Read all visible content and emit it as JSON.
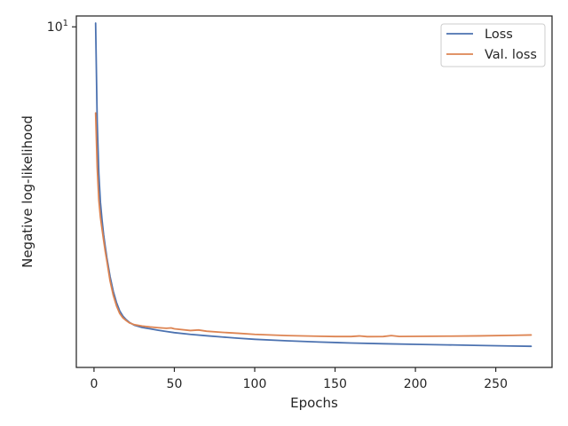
{
  "chart_data": {
    "type": "line",
    "title": "",
    "xlabel": "Epochs",
    "ylabel": "Negative log-likelihood",
    "xlim": [
      -11,
      285
    ],
    "ylim": [
      1.61,
      10.6
    ],
    "yscale": "log",
    "x_ticks": [
      0,
      50,
      100,
      150,
      200,
      250
    ],
    "y_ticks": [
      {
        "value": 10,
        "label_base": "10",
        "label_exp": "1"
      }
    ],
    "grid": false,
    "legend": {
      "position": "top-right",
      "entries": [
        "Loss",
        "Val. loss"
      ]
    },
    "series": [
      {
        "name": "Loss",
        "color": "#4c72b0",
        "points": [
          [
            1,
            10.2
          ],
          [
            2,
            6.0
          ],
          [
            3,
            4.55
          ],
          [
            4,
            3.9
          ],
          [
            5,
            3.55
          ],
          [
            6,
            3.28
          ],
          [
            7,
            3.08
          ],
          [
            8,
            2.9
          ],
          [
            10,
            2.62
          ],
          [
            12,
            2.42
          ],
          [
            14,
            2.28
          ],
          [
            16,
            2.18
          ],
          [
            18,
            2.12
          ],
          [
            20,
            2.08
          ],
          [
            22,
            2.05
          ],
          [
            25,
            2.02
          ],
          [
            30,
            1.995
          ],
          [
            35,
            1.98
          ],
          [
            40,
            1.965
          ],
          [
            45,
            1.952
          ],
          [
            50,
            1.94
          ],
          [
            60,
            1.922
          ],
          [
            70,
            1.908
          ],
          [
            80,
            1.895
          ],
          [
            90,
            1.883
          ],
          [
            100,
            1.872
          ],
          [
            120,
            1.857
          ],
          [
            140,
            1.845
          ],
          [
            160,
            1.835
          ],
          [
            180,
            1.828
          ],
          [
            200,
            1.822
          ],
          [
            220,
            1.817
          ],
          [
            240,
            1.811
          ],
          [
            260,
            1.806
          ],
          [
            272,
            1.803
          ]
        ]
      },
      {
        "name": "Val. loss",
        "color": "#dd8452",
        "points": [
          [
            1,
            6.3
          ],
          [
            2,
            4.7
          ],
          [
            3,
            3.95
          ],
          [
            4,
            3.6
          ],
          [
            5,
            3.38
          ],
          [
            6,
            3.18
          ],
          [
            7,
            3.0
          ],
          [
            8,
            2.85
          ],
          [
            10,
            2.56
          ],
          [
            12,
            2.37
          ],
          [
            14,
            2.24
          ],
          [
            16,
            2.15
          ],
          [
            18,
            2.1
          ],
          [
            20,
            2.07
          ],
          [
            22,
            2.045
          ],
          [
            25,
            2.025
          ],
          [
            30,
            2.01
          ],
          [
            35,
            2.0
          ],
          [
            40,
            1.992
          ],
          [
            45,
            1.986
          ],
          [
            48,
            1.99
          ],
          [
            50,
            1.98
          ],
          [
            60,
            1.962
          ],
          [
            65,
            1.968
          ],
          [
            70,
            1.955
          ],
          [
            80,
            1.943
          ],
          [
            90,
            1.933
          ],
          [
            100,
            1.922
          ],
          [
            120,
            1.91
          ],
          [
            140,
            1.903
          ],
          [
            150,
            1.9
          ],
          [
            160,
            1.9
          ],
          [
            165,
            1.906
          ],
          [
            170,
            1.899
          ],
          [
            180,
            1.9
          ],
          [
            185,
            1.91
          ],
          [
            190,
            1.901
          ],
          [
            200,
            1.902
          ],
          [
            220,
            1.904
          ],
          [
            240,
            1.907
          ],
          [
            260,
            1.912
          ],
          [
            272,
            1.916
          ]
        ]
      }
    ]
  }
}
